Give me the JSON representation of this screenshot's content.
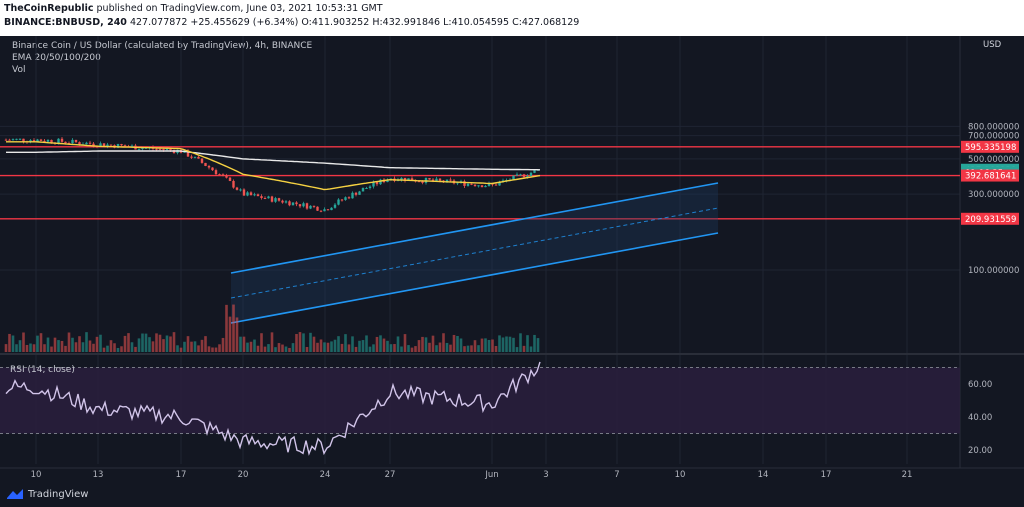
{
  "header": {
    "publisher": "TheCoinRepublic",
    "published_text": "published on TradingView.com, June 03, 2021 10:53:31 GMT",
    "symbol": "BINANCE:BNBUSD, 240",
    "last": "427.077872",
    "change": "+25.455629 (+6.34%)",
    "open": "O:411.903252",
    "high": "H:432.991846",
    "low": "L:410.054595",
    "close": "C:427.068129"
  },
  "legend": {
    "title": "Binance Coin / US Dollar (calculated by TradingView), 4h, BINANCE",
    "ema": "EMA 20/50/100/200",
    "vol": "Vol",
    "rsi": "RSI (14, close)",
    "currency": "USD"
  },
  "price_axis": {
    "ticks": [
      "800.000000",
      "700.000000",
      "500.000000",
      "300.000000",
      "100.000000"
    ],
    "tick_values": [
      800,
      700,
      500,
      300,
      100
    ]
  },
  "price_labels": [
    {
      "text": "595.335198",
      "value": 595.335198,
      "color": "#f23645"
    },
    {
      "text": "427.068129",
      "value": 427.068129,
      "color": "#26a69a"
    },
    {
      "text": "01:06:35",
      "value": 410,
      "color": "#26a69a"
    },
    {
      "text": "392.681641",
      "value": 392.681641,
      "color": "#f23645"
    },
    {
      "text": "209.931559",
      "value": 209.931559,
      "color": "#f23645"
    }
  ],
  "rsi_axis": {
    "ticks": [
      "60.00",
      "40.00",
      "20.00"
    ],
    "tick_values": [
      60,
      40,
      20
    ],
    "bands": [
      70,
      30
    ]
  },
  "time_axis": [
    "10",
    "13",
    "17",
    "20",
    "24",
    "27",
    "Jun",
    "3",
    "7",
    "10",
    "14",
    "17",
    "21"
  ],
  "footer": {
    "brand": "TradingView"
  },
  "chart_data": {
    "type": "line",
    "title": "Binance Coin / US Dollar (calculated by TradingView), 4h, BINANCE",
    "xlabel": "",
    "ylabel": "",
    "y_scale": "log",
    "x": [
      "10",
      "13",
      "17",
      "20",
      "24",
      "27",
      "Jun",
      "3"
    ],
    "series": [
      {
        "values": [
          660,
          620,
          560,
          300,
          240,
          380,
          340,
          427
        ]
      },
      {
        "name": "EMA 20/50/100/200",
        "values": [
          640,
          600,
          580,
          400,
          320,
          370,
          350,
          393
        ]
      },
      {
        "values": [
          550,
          560,
          560,
          500,
          470,
          440,
          430,
          427
        ]
      }
    ],
    "horizontal_levels": [
      595.335198,
      392.681641,
      209.931559
    ],
    "rsi": {
      "name": "RSI (14, close)",
      "x": [
        "10",
        "13",
        "17",
        "20",
        "24",
        "27",
        "Jun",
        "3"
      ],
      "values": [
        58,
        45,
        40,
        25,
        22,
        55,
        48,
        72
      ],
      "bands": [
        70,
        30
      ]
    },
    "colors": {
      "up": "#26a69a",
      "down": "#ef5350",
      "ema_yellow": "#f5d142",
      "ema_white": "#e9e9e9",
      "channel": "#2196f3",
      "level": "#f23645",
      "rsi": "#d1c4e9",
      "rsi_band": "#2a1f3d"
    }
  }
}
